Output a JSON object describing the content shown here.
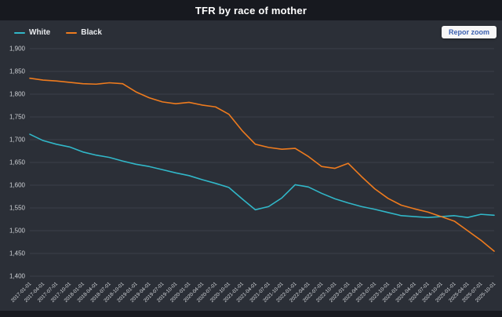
{
  "buttons": {
    "reset_zoom": "Repor zoom"
  },
  "chart_data": {
    "type": "line",
    "title": "TFR by race of mother",
    "xlabel": "",
    "ylabel": "",
    "ylim": [
      1400,
      1900
    ],
    "ytick_step": 50,
    "grid": true,
    "legend_position": "top-left",
    "x": [
      "2017-01-01",
      "2017-04-01",
      "2017-07-01",
      "2017-10-01",
      "2018-01-01",
      "2018-04-01",
      "2018-07-01",
      "2018-10-01",
      "2019-01-01",
      "2019-04-01",
      "2019-07-01",
      "2019-10-01",
      "2020-01-01",
      "2020-04-01",
      "2020-07-01",
      "2020-10-01",
      "2021-01-01",
      "2021-04-01",
      "2021-07-01",
      "2021-10-01",
      "2022-01-01",
      "2022-04-01",
      "2022-07-01",
      "2022-10-01",
      "2023-01-01",
      "2023-04-01",
      "2023-07-01",
      "2023-10-01",
      "2024-01-01",
      "2024-04-01",
      "2024-07-01",
      "2024-10-01",
      "2025-01-01",
      "2025-04-01",
      "2025-07-01",
      "2025-10-01"
    ],
    "series": [
      {
        "name": "White",
        "color": "#31b7c8",
        "values": [
          1712,
          1698,
          1690,
          1684,
          1673,
          1666,
          1661,
          1653,
          1646,
          1641,
          1634,
          1627,
          1621,
          1612,
          1604,
          1595,
          1570,
          1546,
          1553,
          1572,
          1601,
          1596,
          1582,
          1570,
          1561,
          1553,
          1547,
          1540,
          1533,
          1531,
          1529,
          1531,
          1533,
          1529,
          1536,
          1534
        ]
      },
      {
        "name": "Black",
        "color": "#ee7b1e",
        "values": [
          1835,
          1831,
          1829,
          1826,
          1823,
          1822,
          1825,
          1823,
          1805,
          1792,
          1783,
          1779,
          1782,
          1776,
          1772,
          1756,
          1720,
          1690,
          1683,
          1679,
          1681,
          1663,
          1641,
          1637,
          1648,
          1619,
          1592,
          1571,
          1556,
          1548,
          1541,
          1531,
          1521,
          1500,
          1479,
          1455
        ]
      }
    ],
    "colors": {
      "background": "#2b2f37",
      "frame": "#17191f",
      "gridline": "#3b3f49",
      "axis_label": "#cfd2d6"
    }
  }
}
